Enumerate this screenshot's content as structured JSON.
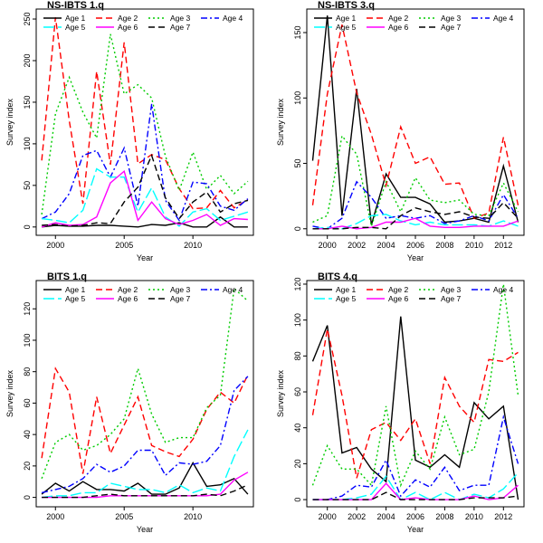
{
  "figure": {
    "background": "#ffffff"
  },
  "chart_data": [
    {
      "type": "line",
      "title": "NS-IBTS 1.q",
      "xlabel": "Year",
      "ylabel": "Survey index",
      "xlim": [
        1998.6,
        2014.4
      ],
      "ylim": [
        -10,
        262
      ],
      "xticks": [
        2000,
        2005,
        2010
      ],
      "yticks": [
        0,
        50,
        100,
        150,
        200,
        250
      ],
      "grid": false,
      "legend": {
        "position": "top",
        "columns": 4
      },
      "x": [
        1999,
        2000,
        2001,
        2002,
        2003,
        2004,
        2005,
        2006,
        2007,
        2008,
        2009,
        2010,
        2011,
        2012,
        2013,
        2014
      ],
      "series": [
        {
          "name": "Age 1",
          "color": "#000000",
          "dash": "solid",
          "values": [
            0,
            2,
            1,
            1,
            2,
            2,
            1,
            0,
            3,
            2,
            5,
            0,
            0,
            12,
            0,
            0
          ]
        },
        {
          "name": "Age 2",
          "color": "#ff0000",
          "dash": "dashed",
          "values": [
            80,
            252,
            128,
            28,
            187,
            75,
            222,
            76,
            87,
            81,
            46,
            22,
            23,
            44,
            23,
            33
          ]
        },
        {
          "name": "Age 3",
          "color": "#00cc00",
          "dash": "dotted",
          "values": [
            15,
            136,
            180,
            138,
            107,
            232,
            160,
            171,
            155,
            85,
            44,
            90,
            45,
            62,
            40,
            55
          ]
        },
        {
          "name": "Age 4",
          "color": "#0000ff",
          "dash": "dashdot",
          "values": [
            10,
            18,
            40,
            86,
            92,
            60,
            95,
            25,
            148,
            32,
            8,
            54,
            52,
            25,
            20,
            34
          ]
        },
        {
          "name": "Age 5",
          "color": "#00ffff",
          "dash": "longdash",
          "values": [
            10,
            8,
            5,
            20,
            70,
            60,
            60,
            18,
            47,
            12,
            1,
            18,
            22,
            8,
            13,
            18
          ]
        },
        {
          "name": "Age 6",
          "color": "#ff00ff",
          "dash": "solid",
          "values": [
            0,
            5,
            2,
            3,
            12,
            53,
            67,
            8,
            30,
            10,
            3,
            8,
            15,
            2,
            10,
            9
          ]
        },
        {
          "name": "Age 7",
          "color": "#000000",
          "dash": "dashed",
          "values": [
            2,
            3,
            1,
            2,
            5,
            4,
            30,
            48,
            86,
            35,
            10,
            30,
            42,
            18,
            28,
            32
          ]
        }
      ]
    },
    {
      "type": "line",
      "title": "NS-IBTS 3.q",
      "xlabel": "Year",
      "ylabel": "Survey index",
      "xlim": [
        1998.6,
        2013.4
      ],
      "ylim": [
        -5,
        168
      ],
      "xticks": [
        2000,
        2002,
        2004,
        2006,
        2008,
        2010,
        2012
      ],
      "yticks": [
        0,
        50,
        100,
        150
      ],
      "grid": false,
      "legend": {
        "position": "top",
        "columns": 4
      },
      "x": [
        1999,
        2000,
        2001,
        2002,
        2003,
        2004,
        2005,
        2006,
        2007,
        2008,
        2009,
        2010,
        2011,
        2012,
        2013
      ],
      "series": [
        {
          "name": "Age 1",
          "color": "#000000",
          "dash": "solid",
          "values": [
            52,
            163,
            10,
            107,
            3,
            42,
            24,
            24,
            19,
            5,
            6,
            8,
            5,
            48,
            5
          ]
        },
        {
          "name": "Age 2",
          "color": "#ff0000",
          "dash": "dashed",
          "values": [
            18,
            103,
            156,
            104,
            72,
            33,
            78,
            50,
            55,
            34,
            35,
            8,
            12,
            70,
            18
          ]
        },
        {
          "name": "Age 3",
          "color": "#00cc00",
          "dash": "dotted",
          "values": [
            5,
            10,
            71,
            57,
            2,
            36,
            13,
            39,
            22,
            20,
            22,
            11,
            10,
            35,
            13
          ]
        },
        {
          "name": "Age 4",
          "color": "#0000ff",
          "dash": "dashdot",
          "values": [
            2,
            0,
            8,
            36,
            24,
            8,
            10,
            8,
            10,
            4,
            6,
            10,
            6,
            26,
            8
          ]
        },
        {
          "name": "Age 5",
          "color": "#00ffff",
          "dash": "longdash",
          "values": [
            0,
            1,
            0,
            4,
            10,
            11,
            6,
            3,
            5,
            3,
            3,
            3,
            2,
            6,
            2
          ]
        },
        {
          "name": "Age 6",
          "color": "#ff00ff",
          "dash": "solid",
          "values": [
            0,
            0,
            2,
            0,
            1,
            5,
            5,
            8,
            2,
            1,
            1,
            2,
            2,
            2,
            6
          ]
        },
        {
          "name": "Age 7",
          "color": "#000000",
          "dash": "dashed",
          "values": [
            0,
            0,
            0,
            1,
            1,
            0,
            10,
            16,
            13,
            11,
            13,
            9,
            8,
            20,
            8
          ]
        }
      ]
    },
    {
      "type": "line",
      "title": "BITS 1.q",
      "xlabel": "Year",
      "ylabel": "Survey index",
      "xlim": [
        1998.6,
        2014.4
      ],
      "ylim": [
        -6,
        138
      ],
      "xticks": [
        2000,
        2005,
        2010
      ],
      "yticks": [
        0,
        20,
        40,
        60,
        80,
        100,
        120
      ],
      "grid": false,
      "legend": {
        "position": "top",
        "columns": 4
      },
      "x": [
        1999,
        2000,
        2001,
        2002,
        2003,
        2004,
        2005,
        2006,
        2007,
        2008,
        2009,
        2010,
        2011,
        2012,
        2013,
        2014
      ],
      "series": [
        {
          "name": "Age 1",
          "color": "#000000",
          "dash": "solid",
          "values": [
            2,
            9,
            4,
            10,
            5,
            5,
            4,
            9,
            2,
            2,
            6,
            22,
            7,
            8,
            12,
            2
          ]
        },
        {
          "name": "Age 2",
          "color": "#ff0000",
          "dash": "dashed",
          "values": [
            25,
            82,
            67,
            15,
            64,
            28,
            46,
            64,
            33,
            29,
            26,
            37,
            56,
            67,
            60,
            78
          ]
        },
        {
          "name": "Age 3",
          "color": "#00cc00",
          "dash": "dotted",
          "values": [
            12,
            35,
            40,
            30,
            33,
            40,
            50,
            82,
            53,
            35,
            38,
            38,
            57,
            65,
            133,
            125
          ]
        },
        {
          "name": "Age 4",
          "color": "#0000ff",
          "dash": "dashdot",
          "values": [
            3,
            5,
            7,
            12,
            21,
            16,
            20,
            30,
            30,
            14,
            22,
            21,
            23,
            33,
            68,
            77
          ]
        },
        {
          "name": "Age 5",
          "color": "#00ffff",
          "dash": "longdash",
          "values": [
            0,
            1,
            1,
            3,
            3,
            9,
            7,
            5,
            5,
            3,
            8,
            3,
            6,
            4,
            26,
            43
          ]
        },
        {
          "name": "Age 6",
          "color": "#ff00ff",
          "dash": "solid",
          "values": [
            0,
            0,
            0,
            0,
            0,
            1,
            1,
            1,
            1,
            1,
            1,
            1,
            1,
            2,
            11,
            16
          ]
        },
        {
          "name": "Age 7",
          "color": "#000000",
          "dash": "dashed",
          "values": [
            0,
            0,
            0,
            0,
            1,
            2,
            1,
            1,
            1,
            1,
            1,
            1,
            2,
            1,
            4,
            8
          ]
        }
      ]
    },
    {
      "type": "line",
      "title": "BITS 4.q",
      "xlabel": "Year",
      "ylabel": "Survey index",
      "xlim": [
        1998.6,
        2013.4
      ],
      "ylim": [
        -4,
        122
      ],
      "xticks": [
        2000,
        2002,
        2004,
        2006,
        2008,
        2010,
        2012
      ],
      "yticks": [
        0,
        20,
        40,
        60,
        80,
        100,
        120
      ],
      "grid": false,
      "legend": {
        "position": "top",
        "columns": 4
      },
      "x": [
        1999,
        2000,
        2001,
        2002,
        2003,
        2004,
        2005,
        2006,
        2007,
        2008,
        2009,
        2010,
        2011,
        2012,
        2013
      ],
      "series": [
        {
          "name": "Age 1",
          "color": "#000000",
          "dash": "solid",
          "values": [
            77,
            97,
            26,
            29,
            17,
            10,
            102,
            22,
            18,
            25,
            18,
            54,
            45,
            52,
            0
          ]
        },
        {
          "name": "Age 2",
          "color": "#ff0000",
          "dash": "dashed",
          "values": [
            47,
            95,
            58,
            12,
            39,
            43,
            33,
            45,
            20,
            68,
            52,
            43,
            78,
            77,
            82
          ]
        },
        {
          "name": "Age 3",
          "color": "#00cc00",
          "dash": "dotted",
          "values": [
            8,
            30,
            17,
            17,
            8,
            52,
            8,
            27,
            17,
            46,
            25,
            28,
            60,
            120,
            58
          ]
        },
        {
          "name": "Age 4",
          "color": "#0000ff",
          "dash": "dashdot",
          "values": [
            0,
            0,
            2,
            8,
            7,
            22,
            2,
            11,
            7,
            18,
            5,
            8,
            8,
            46,
            20
          ]
        },
        {
          "name": "Age 5",
          "color": "#00ffff",
          "dash": "longdash",
          "values": [
            0,
            0,
            0,
            1,
            3,
            13,
            0,
            4,
            0,
            4,
            0,
            3,
            1,
            6,
            15
          ]
        },
        {
          "name": "Age 6",
          "color": "#ff00ff",
          "dash": "solid",
          "values": [
            0,
            0,
            0,
            0,
            0,
            9,
            0,
            1,
            0,
            0,
            0,
            2,
            0,
            1,
            8
          ]
        },
        {
          "name": "Age 7",
          "color": "#000000",
          "dash": "dashed",
          "values": [
            0,
            0,
            0,
            0,
            0,
            4,
            0,
            0,
            0,
            0,
            0,
            1,
            1,
            1,
            2
          ]
        }
      ]
    }
  ]
}
